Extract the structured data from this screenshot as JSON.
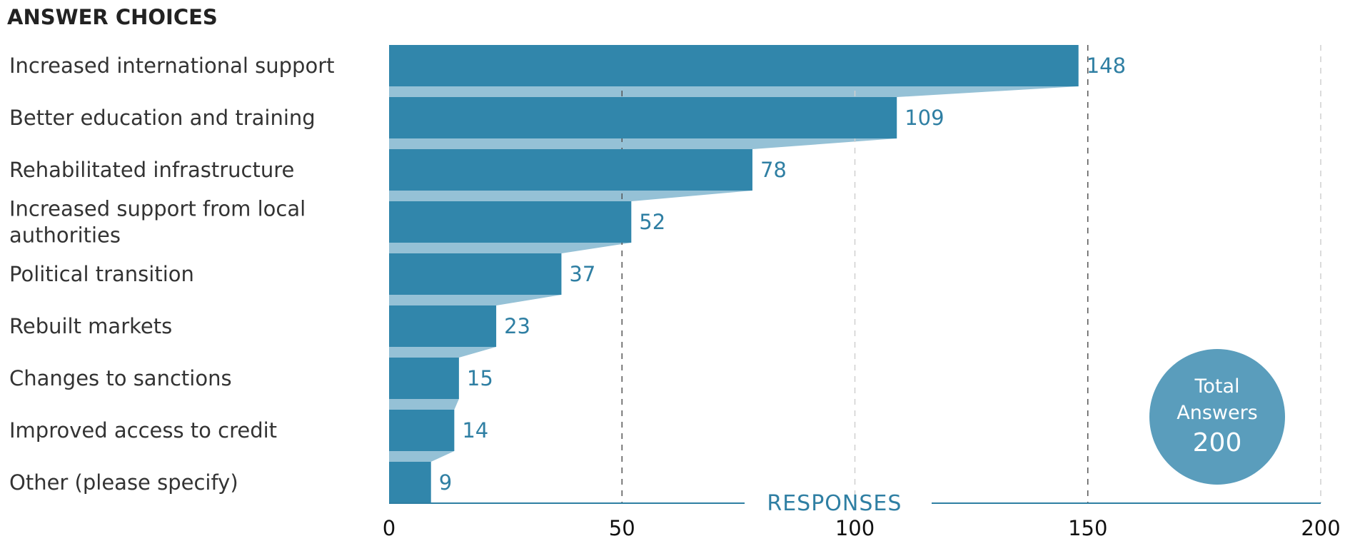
{
  "chart_data": {
    "type": "bar",
    "orientation": "horizontal",
    "heading": "ANSWER CHOICES",
    "xlabel": "RESPONSES",
    "categories": [
      [
        "Increased international support"
      ],
      [
        "Better education and training"
      ],
      [
        "Rehabilitated infrastructure"
      ],
      [
        "Increased support from local",
        "authorities"
      ],
      [
        "Political transition"
      ],
      [
        "Rebuilt markets"
      ],
      [
        "Changes to sanctions"
      ],
      [
        "Improved access to credit"
      ],
      [
        "Other (please specify)"
      ]
    ],
    "values": [
      148,
      109,
      78,
      52,
      37,
      23,
      15,
      14,
      9
    ],
    "xlim": [
      0,
      200
    ],
    "xticks": [
      0,
      50,
      100,
      150,
      200
    ],
    "grid": true,
    "total": {
      "label_lines": [
        "Total",
        "Answers"
      ],
      "value": "200"
    },
    "colors": {
      "bar": "#3186ab",
      "band": "#95c1d6",
      "value_text": "#2f7fa3",
      "axis": "#2f7fa3",
      "badge": "#5a9dbc"
    }
  }
}
